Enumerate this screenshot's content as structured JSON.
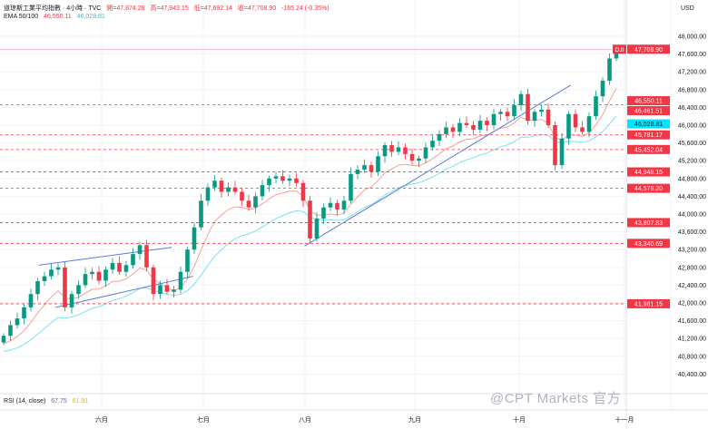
{
  "header": {
    "symbol": "道琼斯工業平均指數 · 4小時 · TVC",
    "open": "開=47,874.28",
    "high": "高=47,943.15",
    "low": "低=47,692.14",
    "close": "收=47,708.90",
    "change": "-165.24 (-0.35%)",
    "ema_label": "EMA 50/100",
    "ema50": "46,550.11",
    "ema100": "46,028.81"
  },
  "rsi": {
    "label": "RSI (14, close)",
    "value": "67.75",
    "ma": "61.91"
  },
  "currency": "USD",
  "watermark": "@CPT Markets 官方",
  "colors": {
    "up": "#089981",
    "down": "#f23645",
    "ema50": "#f7a096",
    "ema100": "#7fe0ef",
    "trend": "#5b7be0",
    "level": "#f23645"
  },
  "chart_data": {
    "type": "candlestick",
    "symbol_tag": "DJI",
    "last_price": "47,708.90",
    "ylim": [
      40200,
      48500
    ],
    "yticks": [
      48000,
      47600,
      47200,
      46800,
      46400,
      46000,
      45600,
      45200,
      44800,
      44400,
      44000,
      43600,
      43200,
      42800,
      42400,
      42000,
      41600,
      41200,
      40800,
      40400
    ],
    "xticks": [
      "六月",
      "七月",
      "八月",
      "九月",
      "十月",
      "十一月"
    ],
    "closes": [
      41260,
      41500,
      41650,
      41900,
      42200,
      42490,
      42600,
      42750,
      42800,
      41900,
      42200,
      42400,
      42650,
      42700,
      42500,
      42750,
      42900,
      42700,
      42850,
      43100,
      43300,
      42800,
      42200,
      42400,
      42250,
      42300,
      42700,
      43200,
      43700,
      44300,
      44600,
      44750,
      44500,
      44600,
      44500,
      44300,
      44150,
      44400,
      44650,
      44800,
      44850,
      44750,
      44800,
      44700,
      44300,
      43450,
      43900,
      44150,
      44250,
      44100,
      44300,
      44900,
      45000,
      45100,
      44950,
      45300,
      45550,
      45400,
      45500,
      45350,
      45200,
      45250,
      45500,
      45650,
      45800,
      45950,
      45850,
      46050,
      46000,
      45900,
      46100,
      46000,
      46250,
      46300,
      46200,
      46450,
      46700,
      46100,
      46300,
      46350,
      46000,
      45100,
      45700,
      46250,
      45950,
      45850,
      46200,
      46650,
      47000,
      47500,
      47709
    ],
    "levels": [
      {
        "value": 46550.11,
        "label": "46,550.11",
        "dashed": false,
        "color": "#f23645"
      },
      {
        "value": 46461.51,
        "label": "46,461.51",
        "dashed": true,
        "color": "#f23645"
      },
      {
        "value": 46028.81,
        "label": "46,028.81",
        "dashed": false,
        "color": "#00e5ff"
      },
      {
        "value": 45781.17,
        "label": "45,781.17",
        "dashed": true,
        "color": "#f23645"
      },
      {
        "value": 45452.04,
        "label": "45,452.04",
        "dashed": true,
        "color": "#f23645"
      },
      {
        "value": 44948.15,
        "label": "44,948.15",
        "dashed": true,
        "color": "#f23645"
      },
      {
        "value": 44579.2,
        "label": "44,579.20",
        "dashed": true,
        "color": "#f23645"
      },
      {
        "value": 43807.83,
        "label": "43,807.83",
        "dashed": true,
        "color": "#f23645"
      },
      {
        "value": 43340.69,
        "label": "43,340.69",
        "dashed": true,
        "color": "#f23645"
      },
      {
        "value": 41981.15,
        "label": "41,981.15",
        "dashed": true,
        "color": "#f23645"
      }
    ]
  }
}
